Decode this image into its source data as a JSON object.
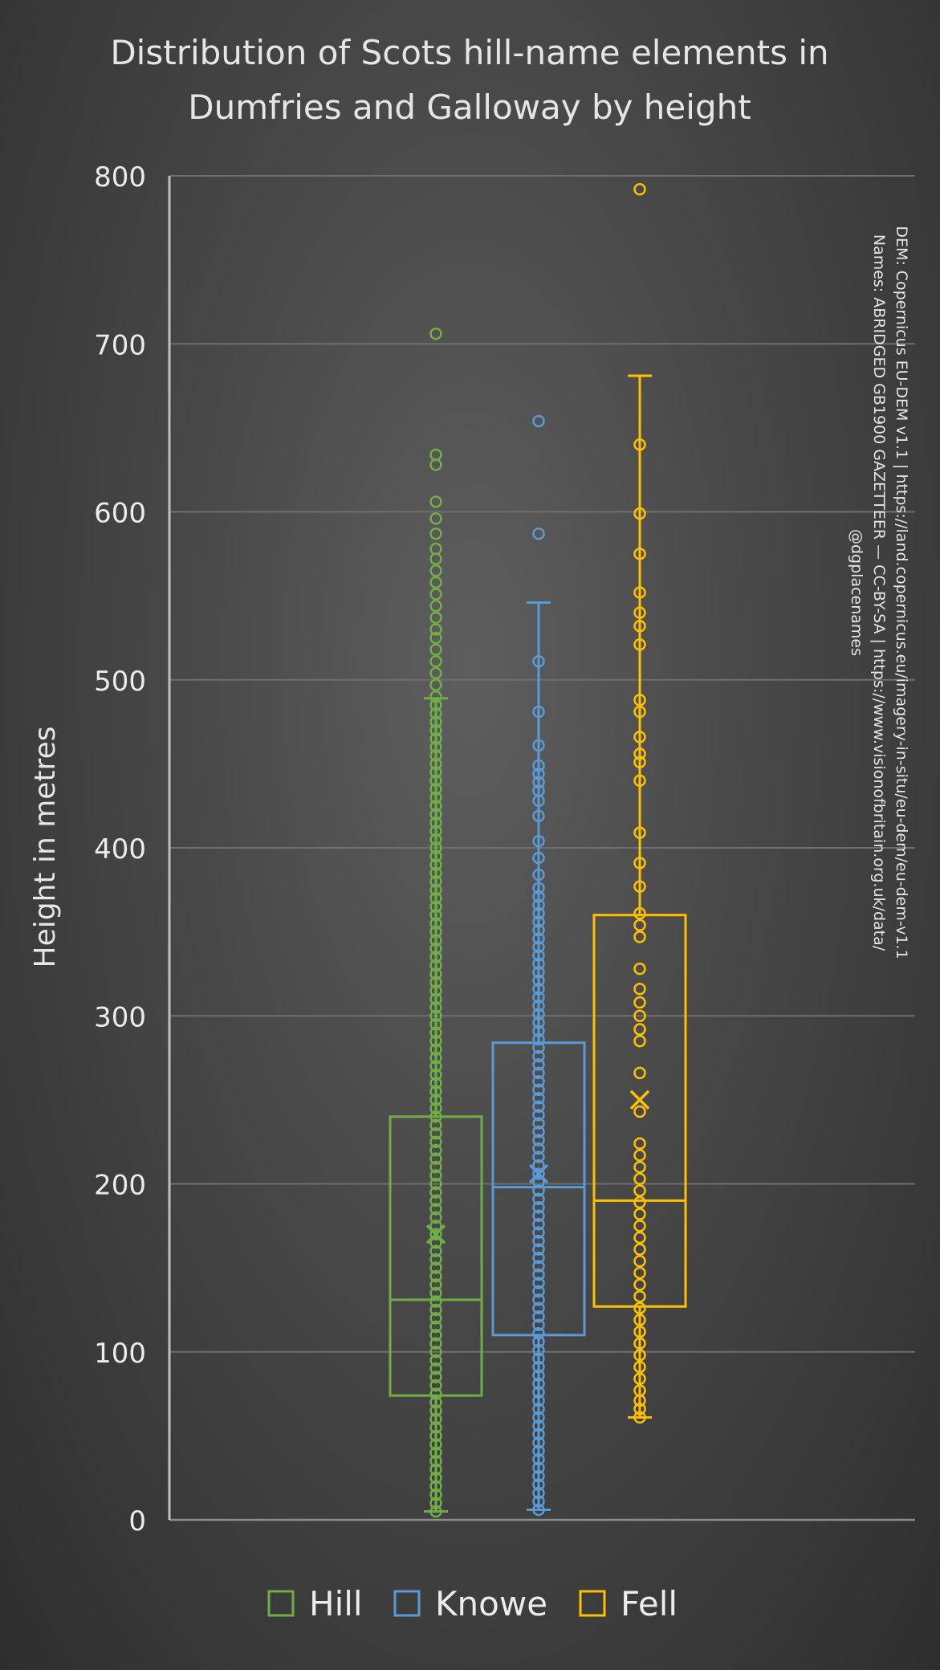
{
  "chart_data": {
    "type": "boxplot",
    "title_lines": [
      "Distribution of Scots hill-name elements in",
      "Dumfries and Galloway by height"
    ],
    "ylabel": "Height in metres",
    "xlabel": "",
    "ylim": [
      0,
      800
    ],
    "yticks": [
      0,
      100,
      200,
      300,
      400,
      500,
      600,
      700,
      800
    ],
    "grid": true,
    "legend_position": "bottom",
    "source_lines": [
      "DEM: Copernicus EU-DEM v1.1 | https://land.copernicus.eu/imagery-in-situ/eu-dem/eu-dem-v1.1",
      "Names: ABRIDGED GB1900 GAZETTEER — CC-BY-SA | https://www.visionofbritain.org.uk/data/",
      "@dgplacenames"
    ],
    "series": [
      {
        "name": "Hill",
        "color": "#70ad47",
        "whisker_low": 5,
        "q1": 74,
        "median": 131,
        "q3": 240,
        "whisker_high": 489,
        "mean": 170,
        "points": [
          5,
          10,
          15,
          20,
          25,
          30,
          35,
          40,
          45,
          50,
          55,
          60,
          65,
          70,
          75,
          80,
          85,
          90,
          95,
          100,
          105,
          110,
          115,
          120,
          125,
          130,
          135,
          140,
          145,
          150,
          155,
          160,
          165,
          170,
          175,
          180,
          185,
          190,
          195,
          200,
          205,
          210,
          215,
          220,
          225,
          230,
          235,
          240,
          245,
          250,
          255,
          260,
          265,
          270,
          275,
          280,
          285,
          290,
          295,
          300,
          305,
          310,
          315,
          320,
          325,
          330,
          335,
          340,
          345,
          350,
          355,
          360,
          365,
          370,
          375,
          380,
          385,
          390,
          395,
          400,
          405,
          410,
          415,
          420,
          425,
          430,
          435,
          440,
          445,
          450,
          455,
          460,
          465,
          470,
          475,
          480,
          485,
          490,
          497,
          504,
          511,
          518,
          525,
          530,
          537,
          544,
          551,
          558,
          565,
          572,
          578,
          587,
          596,
          606,
          628,
          634,
          706
        ]
      },
      {
        "name": "Knowe",
        "color": "#5b9bd5",
        "whisker_low": 6,
        "q1": 110,
        "median": 198,
        "q3": 284,
        "whisker_high": 546,
        "mean": 206,
        "points": [
          6,
          11,
          16,
          21,
          26,
          31,
          36,
          41,
          46,
          51,
          56,
          61,
          66,
          71,
          76,
          81,
          86,
          91,
          96,
          101,
          106,
          111,
          116,
          121,
          126,
          131,
          136,
          141,
          146,
          151,
          156,
          161,
          166,
          171,
          176,
          181,
          186,
          191,
          196,
          201,
          206,
          211,
          216,
          221,
          226,
          231,
          236,
          241,
          246,
          251,
          256,
          261,
          266,
          271,
          276,
          281,
          286,
          291,
          296,
          301,
          306,
          311,
          316,
          321,
          326,
          331,
          336,
          341,
          346,
          351,
          356,
          361,
          366,
          371,
          376,
          384,
          394,
          404,
          419,
          428,
          434,
          439,
          444,
          449,
          461,
          481,
          511,
          587,
          654
        ]
      },
      {
        "name": "Fell",
        "color": "#ffc000",
        "whisker_low": 61,
        "q1": 127,
        "median": 190,
        "q3": 360,
        "whisker_high": 681,
        "mean": 250,
        "points": [
          61,
          66,
          71,
          77,
          84,
          91,
          98,
          105,
          112,
          119,
          126,
          133,
          140,
          147,
          154,
          161,
          168,
          175,
          182,
          189,
          196,
          203,
          210,
          217,
          224,
          243,
          266,
          285,
          292,
          300,
          308,
          316,
          328,
          347,
          354,
          361,
          377,
          391,
          409,
          440,
          451,
          456,
          466,
          481,
          488,
          521,
          532,
          540,
          552,
          575,
          599,
          640,
          792
        ]
      }
    ]
  }
}
